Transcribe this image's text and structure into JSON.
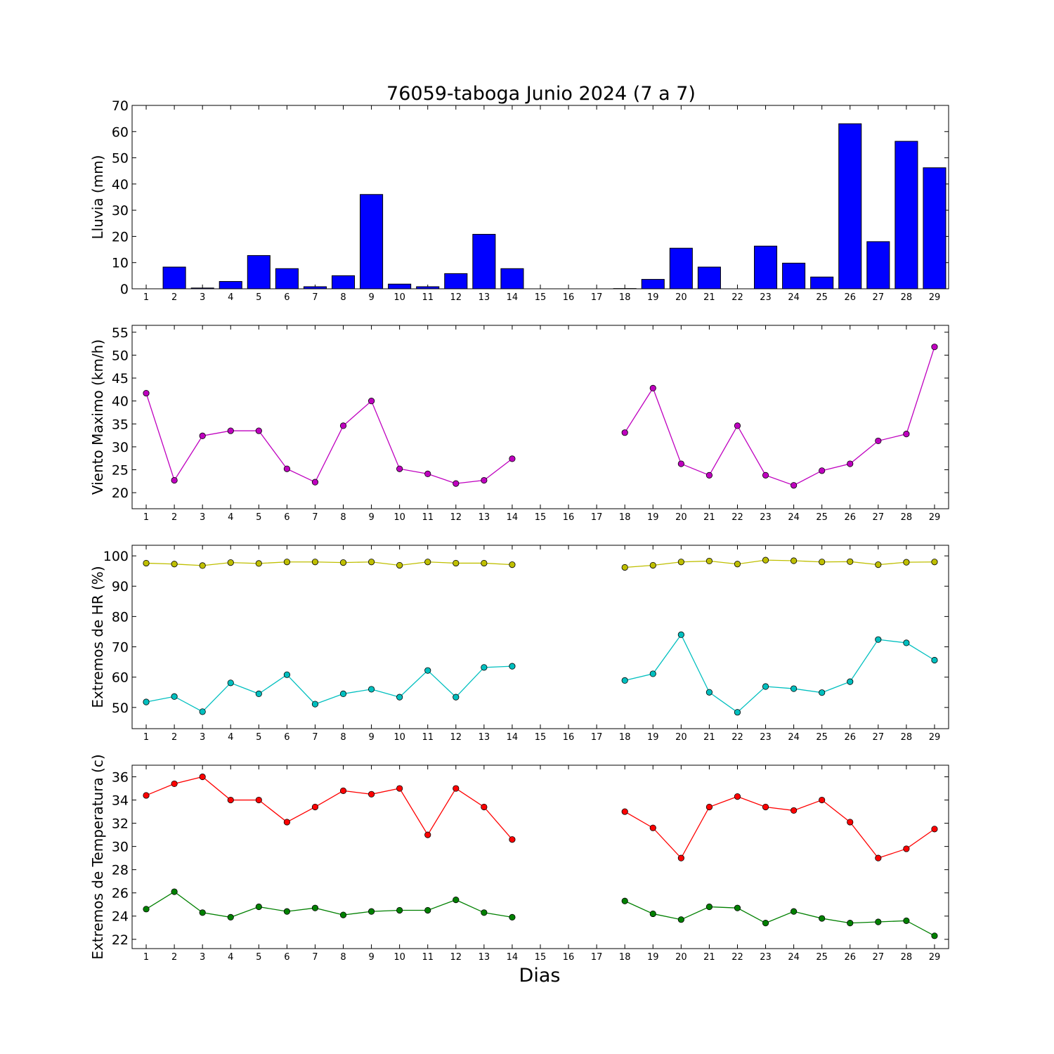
{
  "title": "76059-taboga Junio 2024  (7 a 7)",
  "xlabel": "Dias",
  "colors": {
    "lluvia": "#0000ff",
    "viento": "#bf00bf",
    "hr_max": "#bfbf00",
    "hr_min": "#00bfbf",
    "temp_max": "#ff0000",
    "temp_min": "#008000"
  },
  "chart_data": [
    {
      "type": "bar",
      "ylabel": "Lluvia (mm)",
      "ylim": [
        0,
        70
      ],
      "yticks": [
        0,
        10,
        20,
        30,
        40,
        50,
        60,
        70
      ],
      "categories": [
        "1",
        "2",
        "3",
        "4",
        "5",
        "6",
        "7",
        "8",
        "9",
        "10",
        "11",
        "12",
        "13",
        "14",
        "15",
        "16",
        "17",
        "18",
        "19",
        "20",
        "21",
        "22",
        "23",
        "24",
        "25",
        "26",
        "27",
        "28",
        "29"
      ],
      "values": [
        0,
        8.3,
        0.3,
        2.8,
        12.7,
        7.7,
        0.8,
        5.0,
        36.0,
        1.8,
        0.8,
        5.8,
        20.8,
        7.7,
        0,
        0,
        0,
        0.1,
        3.6,
        15.5,
        8.3,
        0,
        16.3,
        9.8,
        4.5,
        63.0,
        18.0,
        56.3,
        46.2
      ]
    },
    {
      "type": "line",
      "ylabel": "Viento Maximo (km/h)",
      "ylim": [
        16.5,
        56.5
      ],
      "yticks": [
        20,
        25,
        30,
        35,
        40,
        45,
        50,
        55
      ],
      "categories": [
        "1",
        "2",
        "3",
        "4",
        "5",
        "6",
        "7",
        "8",
        "9",
        "10",
        "11",
        "12",
        "13",
        "14",
        "15",
        "16",
        "17",
        "18",
        "19",
        "20",
        "21",
        "22",
        "23",
        "24",
        "25",
        "26",
        "27",
        "28",
        "29"
      ],
      "series": [
        {
          "key": "viento",
          "values": [
            41.7,
            22.7,
            32.4,
            33.5,
            33.5,
            25.2,
            22.3,
            34.6,
            40.0,
            25.2,
            24.1,
            22.0,
            22.7,
            27.4,
            null,
            null,
            null,
            33.1,
            42.8,
            26.3,
            23.8,
            34.6,
            23.8,
            21.6,
            24.8,
            26.3,
            31.3,
            32.8,
            51.8
          ]
        }
      ]
    },
    {
      "type": "line",
      "ylabel": "Extremos de HR (%)",
      "ylim": [
        43,
        103.5
      ],
      "yticks": [
        50,
        60,
        70,
        80,
        90,
        100
      ],
      "categories": [
        "1",
        "2",
        "3",
        "4",
        "5",
        "6",
        "7",
        "8",
        "9",
        "10",
        "11",
        "12",
        "13",
        "14",
        "15",
        "16",
        "17",
        "18",
        "19",
        "20",
        "21",
        "22",
        "23",
        "24",
        "25",
        "26",
        "27",
        "28",
        "29"
      ],
      "series": [
        {
          "key": "hr_max",
          "values": [
            97.6,
            97.3,
            96.8,
            97.8,
            97.5,
            98.0,
            98.0,
            97.8,
            98.0,
            96.9,
            98.0,
            97.6,
            97.6,
            97.1,
            null,
            null,
            null,
            96.2,
            96.9,
            98.0,
            98.3,
            97.3,
            98.6,
            98.4,
            98.0,
            98.1,
            97.1,
            97.9,
            98.0
          ]
        },
        {
          "key": "hr_min",
          "values": [
            51.8,
            53.6,
            48.6,
            58.1,
            54.5,
            60.8,
            51.1,
            54.5,
            56.0,
            53.4,
            62.2,
            53.4,
            63.2,
            63.6,
            null,
            null,
            null,
            58.9,
            61.1,
            74.0,
            55.0,
            48.4,
            56.9,
            56.2,
            54.9,
            58.5,
            72.4,
            71.3,
            65.6
          ]
        }
      ]
    },
    {
      "type": "line",
      "ylabel": "Extremos de Temperatura (c)",
      "ylim": [
        21.2,
        37.0
      ],
      "yticks": [
        22,
        24,
        26,
        28,
        30,
        32,
        34,
        36
      ],
      "categories": [
        "1",
        "2",
        "3",
        "4",
        "5",
        "6",
        "7",
        "8",
        "9",
        "10",
        "11",
        "12",
        "13",
        "14",
        "15",
        "16",
        "17",
        "18",
        "19",
        "20",
        "21",
        "22",
        "23",
        "24",
        "25",
        "26",
        "27",
        "28",
        "29"
      ],
      "series": [
        {
          "key": "temp_max",
          "values": [
            34.4,
            35.4,
            36.0,
            34.0,
            34.0,
            32.1,
            33.4,
            34.8,
            34.5,
            35.0,
            31.0,
            35.0,
            33.4,
            30.6,
            null,
            null,
            null,
            33.0,
            31.6,
            29.0,
            33.4,
            34.3,
            33.4,
            33.1,
            34.0,
            32.1,
            29.0,
            29.8,
            31.5
          ]
        },
        {
          "key": "temp_min",
          "values": [
            24.6,
            26.1,
            24.3,
            23.9,
            24.8,
            24.4,
            24.7,
            24.1,
            24.4,
            24.5,
            24.5,
            25.4,
            24.3,
            23.9,
            null,
            null,
            null,
            25.3,
            24.2,
            23.7,
            24.8,
            24.7,
            23.4,
            24.4,
            23.8,
            23.4,
            23.5,
            23.6,
            22.3
          ]
        }
      ]
    }
  ]
}
